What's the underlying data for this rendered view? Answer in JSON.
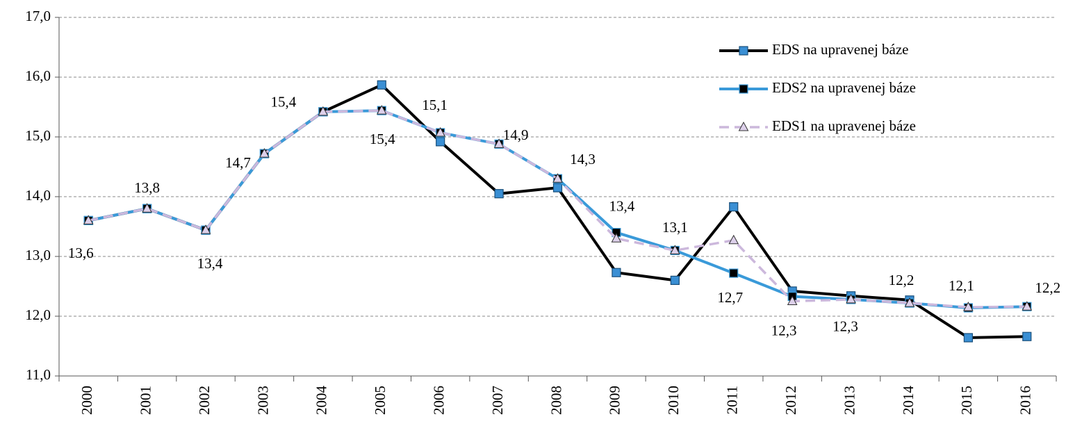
{
  "chart_data": {
    "type": "line",
    "categories": [
      "2000",
      "2001",
      "2002",
      "2003",
      "2004",
      "2005",
      "2006",
      "2007",
      "2008",
      "2009",
      "2010",
      "2011",
      "2012",
      "2013",
      "2014",
      "2015",
      "2016"
    ],
    "series": [
      {
        "name": "EDS na upravenej báze",
        "color": "#000000",
        "marker": "square",
        "marker_color": "#3a8fd4",
        "dash": false,
        "values": [
          13.6,
          13.8,
          13.44,
          14.72,
          15.42,
          15.87,
          14.92,
          14.05,
          14.15,
          12.73,
          12.6,
          13.83,
          12.42,
          12.34,
          12.27,
          11.64,
          11.66
        ]
      },
      {
        "name": "EDS2 na upravenej báze",
        "color": "#3a9ad9",
        "marker": "square",
        "marker_color": "#000000",
        "dash": false,
        "values": [
          13.6,
          13.8,
          13.44,
          14.72,
          15.42,
          15.44,
          15.07,
          14.88,
          14.3,
          13.4,
          13.1,
          12.72,
          12.33,
          12.28,
          12.22,
          12.14,
          12.16
        ],
        "value_labels": [
          "13,6",
          "13,8",
          "13,4",
          "14,7",
          "15,4",
          "15,4",
          "15,1",
          "14,9",
          "14,3",
          "13,4",
          "13,1",
          "12,7",
          "12,3",
          "12,3",
          "12,2",
          "12,1",
          "12,2"
        ]
      },
      {
        "name": "EDS1 na upravenej báze",
        "color": "#ccb8dc",
        "marker": "triangle",
        "marker_color": "#ddd0ea",
        "dash": true,
        "values": [
          13.6,
          13.8,
          13.44,
          14.72,
          15.42,
          15.44,
          15.07,
          14.88,
          14.3,
          13.3,
          13.1,
          13.27,
          12.25,
          12.28,
          12.22,
          12.15,
          12.16
        ]
      }
    ],
    "ylim": [
      11,
      17
    ],
    "yticks": [
      {
        "value": 11,
        "label": "11,0"
      },
      {
        "value": 12,
        "label": "12,0"
      },
      {
        "value": 13,
        "label": "13,0"
      },
      {
        "value": 14,
        "label": "14,0"
      },
      {
        "value": 15,
        "label": "15,0"
      },
      {
        "value": 16,
        "label": "16,0"
      },
      {
        "value": 17,
        "label": "17,0"
      }
    ],
    "grid": true,
    "legend": "upper right"
  }
}
